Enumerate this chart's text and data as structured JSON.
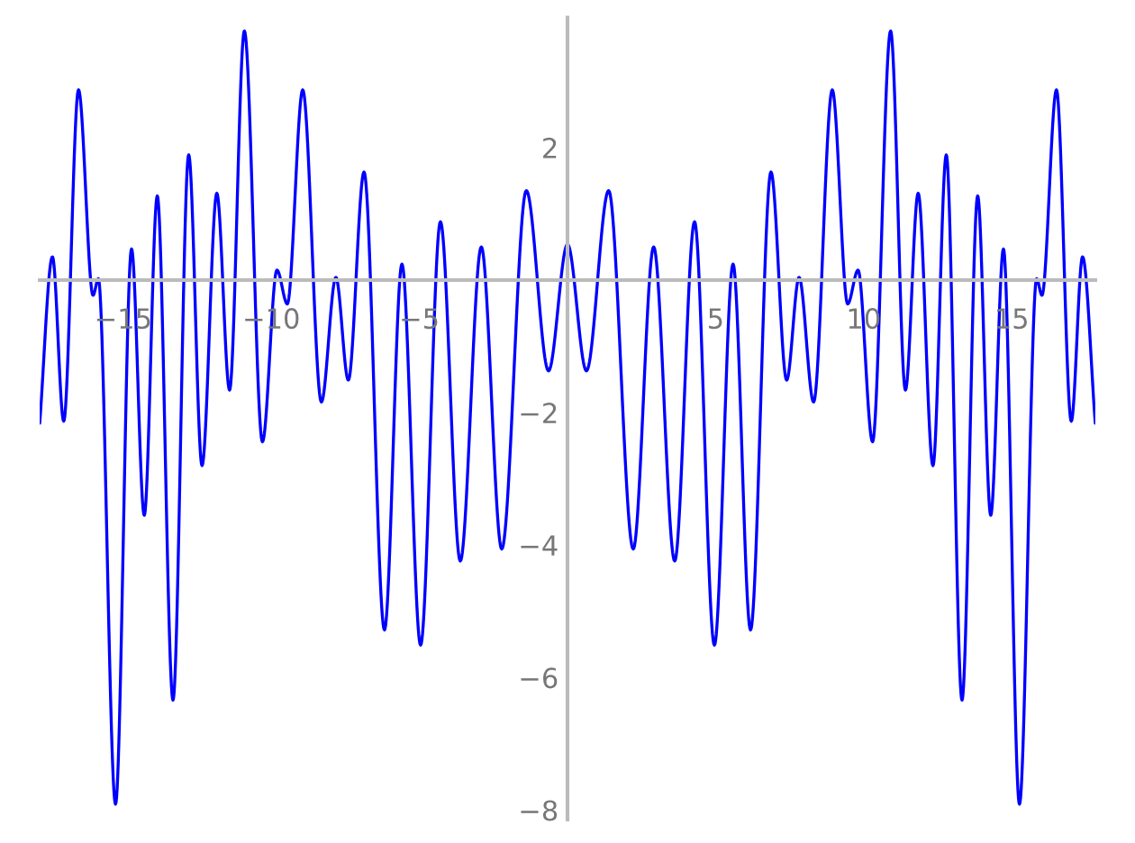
{
  "chart_data": {
    "type": "line",
    "x": [
      -17.82,
      -17.39,
      -17.01,
      -16.51,
      -16.02,
      -15.84,
      -15.26,
      -14.72,
      -14.29,
      -13.85,
      -13.32,
      -12.79,
      -12.34,
      -11.84,
      -11.41,
      -10.91,
      -10.3,
      -9.81,
      -9.46,
      -8.94,
      -8.31,
      -7.82,
      -7.4,
      -6.87,
      -6.18,
      -5.59,
      -4.96,
      -4.29,
      -3.62,
      -2.91,
      -2.22,
      -1.39,
      -0.64,
      0,
      0.64,
      1.39,
      2.22,
      2.91,
      3.62,
      4.29,
      4.96,
      5.59,
      6.18,
      6.87,
      7.4,
      7.82,
      8.31,
      8.94,
      9.46,
      9.81,
      10.3,
      10.91,
      11.41,
      11.84,
      12.34,
      12.79,
      13.32,
      13.85,
      14.29,
      14.72,
      15.26,
      15.84,
      16.02,
      16.51,
      17.01,
      17.39,
      17.82
    ],
    "series": [
      {
        "color": "#0000ff",
        "values": [
          -2.16,
          0.35,
          -2.13,
          2.87,
          -0.23,
          0.02,
          -7.91,
          0.47,
          -3.55,
          1.27,
          -6.34,
          1.89,
          -2.8,
          1.31,
          -1.66,
          3.76,
          -2.44,
          0.15,
          -0.36,
          2.87,
          -1.84,
          0.04,
          -1.51,
          1.63,
          -5.28,
          0.24,
          -5.51,
          0.88,
          -4.24,
          0.5,
          -4.06,
          1.35,
          -1.37,
          0.54,
          -1.37,
          1.35,
          -4.06,
          0.5,
          -4.24,
          0.88,
          -5.51,
          0.24,
          -5.28,
          1.63,
          -1.51,
          0.04,
          -1.84,
          2.87,
          -0.36,
          0.15,
          -2.44,
          3.76,
          -1.66,
          1.31,
          -2.8,
          1.89,
          -6.34,
          1.27,
          -3.55,
          0.47,
          -7.91,
          0.02,
          -0.23,
          2.87,
          -2.13,
          0.35,
          -2.16
        ]
      }
    ],
    "xlim": [
      -17.82,
      17.82
    ],
    "ylim": [
      -8.14,
      3.96
    ],
    "xticks": [
      {
        "value": -15,
        "label": "−15"
      },
      {
        "value": -10,
        "label": "−10"
      },
      {
        "value": -5,
        "label": "−5"
      },
      5,
      10,
      15
    ],
    "yticks": [
      {
        "value": -8,
        "label": "−8"
      },
      {
        "value": -6,
        "label": "−6"
      },
      {
        "value": -4,
        "label": "−4"
      },
      {
        "value": -2,
        "label": "−2"
      },
      2
    ],
    "grid": false,
    "marker": "none",
    "line_style": "solid"
  }
}
